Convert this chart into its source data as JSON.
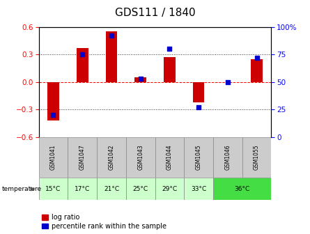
{
  "title": "GDS111 / 1840",
  "samples": [
    "GSM1041",
    "GSM1047",
    "GSM1042",
    "GSM1043",
    "GSM1044",
    "GSM1045",
    "GSM1046",
    "GSM1055"
  ],
  "log_ratio": [
    -0.42,
    0.37,
    0.55,
    0.05,
    0.27,
    -0.22,
    0.0,
    0.25
  ],
  "percentile": [
    20,
    75,
    92,
    53,
    80,
    27,
    50,
    72
  ],
  "ylim_left": [
    -0.6,
    0.6
  ],
  "ylim_right": [
    0,
    100
  ],
  "yticks_left": [
    -0.6,
    -0.3,
    0.0,
    0.3,
    0.6
  ],
  "yticks_right": [
    0,
    25,
    50,
    75,
    100
  ],
  "bar_color": "#cc0000",
  "dot_color": "#0000cc",
  "bg_color": "#ffffff",
  "sample_box_color": "#cccccc",
  "temp_light_green": "#ccffcc",
  "temp_bright_green": "#44dd44",
  "temp_labels_single": [
    "15°C",
    "17°C",
    "21°C",
    "25°C",
    "29°C",
    "33°C"
  ],
  "temp_label_double": "36°C",
  "title_fontsize": 11,
  "tick_fontsize": 7.5,
  "label_fontsize": 7.5,
  "legend_fontsize": 7
}
